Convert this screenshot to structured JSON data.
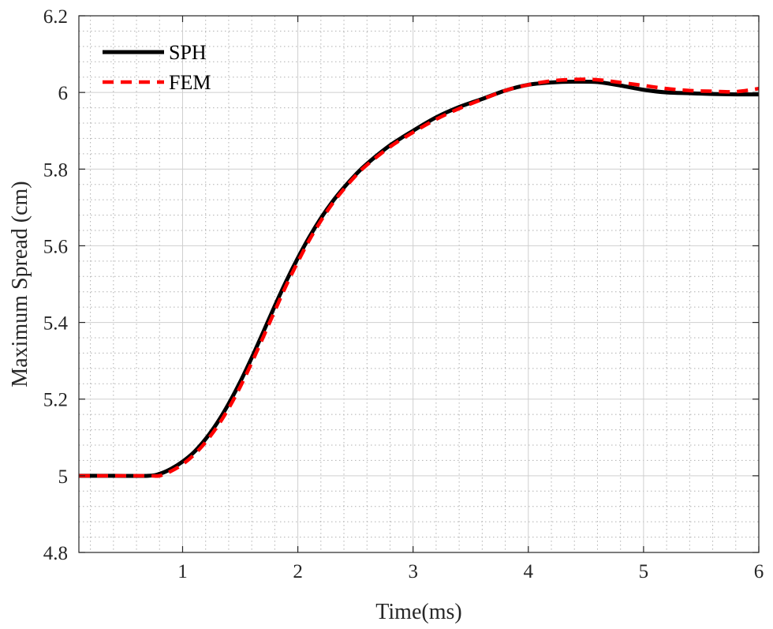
{
  "chart_data": {
    "type": "line",
    "title": "",
    "xlabel": "Time(ms)",
    "ylabel": "Maximum Spread (cm)",
    "xlim": [
      0.1,
      6
    ],
    "ylim": [
      4.8,
      6.2
    ],
    "xticks": [
      1,
      2,
      3,
      4,
      5,
      6
    ],
    "xtick_labels": [
      "1",
      "2",
      "3",
      "4",
      "5",
      "6"
    ],
    "yticks": [
      4.8,
      5.0,
      5.2,
      5.4,
      5.6,
      5.8,
      6.0,
      6.2
    ],
    "ytick_labels": [
      "4.8",
      "5",
      "5.2",
      "5.4",
      "5.6",
      "5.8",
      "6",
      "6.2"
    ],
    "grid": true,
    "minor_grid": true,
    "legend_position": "top-left",
    "series": [
      {
        "name": "SPH",
        "color": "#000000",
        "style": "solid",
        "x": [
          0.1,
          0.4,
          0.7,
          0.8,
          0.9,
          1.0,
          1.1,
          1.2,
          1.3,
          1.4,
          1.5,
          1.6,
          1.7,
          1.8,
          1.9,
          2.0,
          2.1,
          2.2,
          2.3,
          2.4,
          2.5,
          2.6,
          2.8,
          3.0,
          3.2,
          3.4,
          3.6,
          3.8,
          4.0,
          4.2,
          4.4,
          4.6,
          4.8,
          5.0,
          5.2,
          5.4,
          5.6,
          5.8,
          6.0
        ],
        "y": [
          5.0,
          5.0,
          5.0,
          5.005,
          5.018,
          5.037,
          5.062,
          5.096,
          5.138,
          5.188,
          5.245,
          5.308,
          5.375,
          5.443,
          5.508,
          5.568,
          5.623,
          5.672,
          5.715,
          5.752,
          5.785,
          5.814,
          5.862,
          5.9,
          5.935,
          5.962,
          5.983,
          6.005,
          6.02,
          6.026,
          6.028,
          6.027,
          6.018,
          6.007,
          6.0,
          5.998,
          5.996,
          5.995,
          5.995
        ]
      },
      {
        "name": "FEM",
        "color": "#ff0000",
        "style": "dashed",
        "x": [
          0.1,
          0.4,
          0.7,
          0.8,
          0.9,
          1.0,
          1.1,
          1.2,
          1.3,
          1.4,
          1.5,
          1.6,
          1.7,
          1.8,
          1.9,
          2.0,
          2.1,
          2.2,
          2.3,
          2.4,
          2.5,
          2.6,
          2.8,
          3.0,
          3.2,
          3.4,
          3.6,
          3.8,
          4.0,
          4.2,
          4.4,
          4.6,
          4.8,
          5.0,
          5.2,
          5.4,
          5.6,
          5.8,
          6.0
        ],
        "y": [
          5.0,
          5.0,
          5.0,
          5.0,
          5.012,
          5.03,
          5.055,
          5.088,
          5.128,
          5.176,
          5.232,
          5.295,
          5.362,
          5.43,
          5.497,
          5.558,
          5.615,
          5.665,
          5.71,
          5.748,
          5.782,
          5.811,
          5.858,
          5.896,
          5.93,
          5.958,
          5.982,
          6.005,
          6.02,
          6.03,
          6.034,
          6.033,
          6.026,
          6.018,
          6.01,
          6.005,
          6.003,
          6.002,
          6.01
        ]
      }
    ]
  }
}
